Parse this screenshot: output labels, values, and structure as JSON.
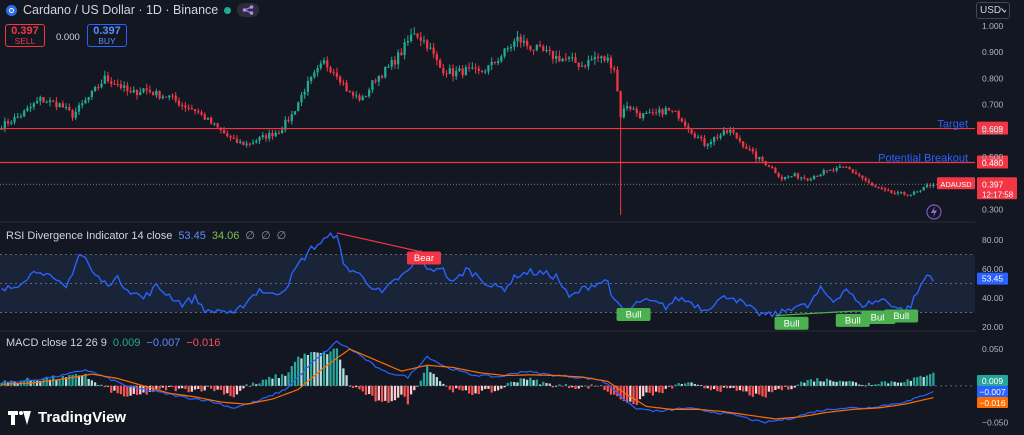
{
  "header": {
    "title": "Cardano / US Dollar · 1D · Binance",
    "logo_icon": "cardano-coin-icon",
    "status_color": "#22ab94",
    "currency_selector": "USD"
  },
  "trade": {
    "sell_price": "0.397",
    "sell_label": "SELL",
    "spread": "0.000",
    "buy_price": "0.397",
    "buy_label": "BUY"
  },
  "rsi_legend": {
    "name": "RSI Divergence Indicator 14 close",
    "value1": "53.45",
    "value2": "34.06",
    "value3": "∅",
    "value4": "∅",
    "value5": "∅"
  },
  "macd_legend": {
    "name": "MACD close 12 26 9",
    "hist": "0.009",
    "macd": "−0.007",
    "signal": "−0.016"
  },
  "branding": {
    "name": "TradingView"
  },
  "chart_data": [
    {
      "type": "candlestick",
      "symbol": "ADAUSD",
      "ylim": [
        0.28,
        1.03
      ],
      "y_ticks": [
        1.0,
        0.9,
        0.8,
        0.7,
        0.6,
        0.5,
        0.4,
        0.3
      ],
      "y_tick_labels": [
        "1.000",
        "0.900",
        "0.800",
        "0.700",
        "0.600",
        "0.500",
        "0.400",
        "0.300"
      ],
      "last_price": "0.397",
      "countdown": "12:17:58",
      "close_path": [
        [
          0,
          0.62
        ],
        [
          6,
          0.66
        ],
        [
          12,
          0.72
        ],
        [
          18,
          0.7
        ],
        [
          22,
          0.66
        ],
        [
          28,
          0.74
        ],
        [
          32,
          0.8
        ],
        [
          36,
          0.78
        ],
        [
          40,
          0.74
        ],
        [
          44,
          0.76
        ],
        [
          48,
          0.74
        ],
        [
          52,
          0.73
        ],
        [
          56,
          0.7
        ],
        [
          60,
          0.68
        ],
        [
          64,
          0.64
        ],
        [
          68,
          0.6
        ],
        [
          72,
          0.56
        ],
        [
          76,
          0.55
        ],
        [
          80,
          0.57
        ],
        [
          86,
          0.6
        ],
        [
          90,
          0.66
        ],
        [
          94,
          0.76
        ],
        [
          100,
          0.86
        ],
        [
          104,
          0.82
        ],
        [
          108,
          0.74
        ],
        [
          112,
          0.72
        ],
        [
          116,
          0.8
        ],
        [
          120,
          0.84
        ],
        [
          124,
          0.9
        ],
        [
          128,
          0.98
        ],
        [
          132,
          0.93
        ],
        [
          136,
          0.84
        ],
        [
          140,
          0.82
        ],
        [
          144,
          0.83
        ],
        [
          148,
          0.82
        ],
        [
          152,
          0.85
        ],
        [
          156,
          0.9
        ],
        [
          160,
          0.95
        ],
        [
          164,
          0.92
        ],
        [
          168,
          0.9
        ],
        [
          172,
          0.88
        ],
        [
          176,
          0.87
        ],
        [
          180,
          0.85
        ],
        [
          184,
          0.88
        ],
        [
          188,
          0.87
        ],
        [
          190,
          0.84
        ],
        [
          192,
          0.66
        ],
        [
          194,
          0.7
        ],
        [
          198,
          0.66
        ],
        [
          202,
          0.66
        ],
        [
          206,
          0.68
        ],
        [
          210,
          0.66
        ],
        [
          214,
          0.6
        ],
        [
          218,
          0.55
        ],
        [
          222,
          0.58
        ],
        [
          226,
          0.6
        ],
        [
          230,
          0.55
        ],
        [
          234,
          0.5
        ],
        [
          238,
          0.47
        ],
        [
          242,
          0.42
        ],
        [
          246,
          0.43
        ],
        [
          250,
          0.42
        ],
        [
          254,
          0.44
        ],
        [
          258,
          0.45
        ],
        [
          262,
          0.46
        ],
        [
          266,
          0.43
        ],
        [
          270,
          0.39
        ],
        [
          274,
          0.37
        ],
        [
          278,
          0.36
        ],
        [
          282,
          0.36
        ],
        [
          285,
          0.37
        ],
        [
          287,
          0.39
        ],
        [
          289,
          0.4
        ]
      ],
      "wick_spike": {
        "x": 192,
        "low": 0.28
      },
      "horizontal_lines": [
        {
          "label": "Target",
          "value": 0.609,
          "value_label": "0.609"
        },
        {
          "label": "Potential Breakout",
          "value": 0.48,
          "value_label": "0.480"
        }
      ],
      "colors": {
        "up": "#22ab94",
        "down": "#f23645",
        "line": "#f23645",
        "label": "#2962ff"
      }
    },
    {
      "type": "line",
      "title": "RSI Divergence Indicator 14 close",
      "ylim": [
        18,
        87
      ],
      "y_ticks": [
        80,
        60,
        40,
        20
      ],
      "y_tick_labels": [
        "80.00",
        "60.00",
        "40.00",
        "20.00"
      ],
      "band": [
        30,
        70
      ],
      "midline": 50,
      "last_value": "53.45",
      "series": [
        {
          "values": [
            [
              0,
              45
            ],
            [
              4,
              48
            ],
            [
              8,
              55
            ],
            [
              12,
              60
            ],
            [
              16,
              52
            ],
            [
              20,
              47
            ],
            [
              24,
              70
            ],
            [
              26,
              68
            ],
            [
              28,
              58
            ],
            [
              32,
              50
            ],
            [
              36,
              53
            ],
            [
              40,
              45
            ],
            [
              44,
              40
            ],
            [
              48,
              48
            ],
            [
              52,
              42
            ],
            [
              56,
              36
            ],
            [
              60,
              40
            ],
            [
              64,
              30
            ],
            [
              68,
              32
            ],
            [
              72,
              28
            ],
            [
              76,
              38
            ],
            [
              80,
              46
            ],
            [
              84,
              42
            ],
            [
              88,
              47
            ],
            [
              92,
              63
            ],
            [
              96,
              74
            ],
            [
              100,
              80
            ],
            [
              104,
              85
            ],
            [
              106,
              62
            ],
            [
              110,
              58
            ],
            [
              114,
              50
            ],
            [
              118,
              43
            ],
            [
              122,
              52
            ],
            [
              126,
              58
            ],
            [
              128,
              64
            ],
            [
              130,
              72
            ],
            [
              132,
              58
            ],
            [
              136,
              62
            ],
            [
              140,
              50
            ],
            [
              144,
              60
            ],
            [
              148,
              55
            ],
            [
              152,
              48
            ],
            [
              156,
              47
            ],
            [
              160,
              56
            ],
            [
              164,
              58
            ],
            [
              168,
              57
            ],
            [
              172,
              55
            ],
            [
              174,
              48
            ],
            [
              176,
              40
            ],
            [
              180,
              46
            ],
            [
              184,
              50
            ],
            [
              188,
              52
            ],
            [
              190,
              37
            ],
            [
              194,
              30
            ],
            [
              198,
              38
            ],
            [
              202,
              37
            ],
            [
              206,
              34
            ],
            [
              210,
              40
            ],
            [
              214,
              37
            ],
            [
              218,
              32
            ],
            [
              222,
              38
            ],
            [
              226,
              42
            ],
            [
              230,
              36
            ],
            [
              234,
              30
            ],
            [
              238,
              28
            ],
            [
              242,
              30
            ],
            [
              246,
              35
            ],
            [
              250,
              34
            ],
            [
              254,
              46
            ],
            [
              258,
              38
            ],
            [
              262,
              47
            ],
            [
              266,
              35
            ],
            [
              270,
              37
            ],
            [
              274,
              39
            ],
            [
              278,
              33
            ],
            [
              280,
              31
            ],
            [
              282,
              35
            ],
            [
              285,
              48
            ],
            [
              287,
              56
            ],
            [
              289,
              54
            ]
          ]
        }
      ],
      "annotations": [
        {
          "label": "Bear",
          "x": 131,
          "y": 68,
          "color": "#f23645"
        },
        {
          "label": "Bull",
          "x": 196,
          "y": 29,
          "color": "#4caf50"
        },
        {
          "label": "Bull",
          "x": 245,
          "y": 23,
          "color": "#4caf50"
        },
        {
          "label": "Bull",
          "x": 264,
          "y": 25,
          "color": "#4caf50"
        },
        {
          "label": "Bull",
          "x": 272,
          "y": 27,
          "color": "#4caf50"
        },
        {
          "label": "Bull",
          "x": 279,
          "y": 28,
          "color": "#4caf50"
        }
      ],
      "divergence_lines": [
        {
          "from": [
            104,
            85
          ],
          "to": [
            130,
            72
          ],
          "color": "#f23645"
        },
        {
          "from": [
            240,
            28
          ],
          "to": [
            264,
            31
          ],
          "color": "#4caf50"
        },
        {
          "from": [
            264,
            31
          ],
          "to": [
            280,
            31
          ],
          "color": "#4caf50"
        }
      ]
    },
    {
      "type": "line",
      "title": "MACD close 12 26 9",
      "ylim": [
        -0.06,
        0.065
      ],
      "y_ticks": [
        0.05,
        0.0,
        -0.05
      ],
      "y_tick_labels": [
        "0.050",
        "0.000",
        "−0.050"
      ],
      "last_values": {
        "hist": "0.009",
        "macd": "−0.007",
        "signal": "−0.016"
      },
      "series": [
        {
          "name": "MACD",
          "color": "#2962ff",
          "values": [
            [
              0,
              0.004
            ],
            [
              10,
              0.008
            ],
            [
              20,
              0.015
            ],
            [
              26,
              0.022
            ],
            [
              32,
              0.012
            ],
            [
              40,
              -0.002
            ],
            [
              48,
              -0.008
            ],
            [
              56,
              -0.015
            ],
            [
              64,
              -0.02
            ],
            [
              72,
              -0.03
            ],
            [
              80,
              -0.02
            ],
            [
              88,
              -0.005
            ],
            [
              96,
              0.03
            ],
            [
              104,
              0.06
            ],
            [
              110,
              0.045
            ],
            [
              118,
              0.02
            ],
            [
              126,
              0.012
            ],
            [
              132,
              0.04
            ],
            [
              138,
              0.025
            ],
            [
              146,
              0.015
            ],
            [
              154,
              0.012
            ],
            [
              162,
              0.02
            ],
            [
              170,
              0.015
            ],
            [
              178,
              0.012
            ],
            [
              186,
              0.008
            ],
            [
              190,
              -0.005
            ],
            [
              196,
              -0.03
            ],
            [
              204,
              -0.035
            ],
            [
              212,
              -0.03
            ],
            [
              220,
              -0.035
            ],
            [
              228,
              -0.04
            ],
            [
              236,
              -0.05
            ],
            [
              244,
              -0.045
            ],
            [
              252,
              -0.035
            ],
            [
              260,
              -0.03
            ],
            [
              268,
              -0.03
            ],
            [
              276,
              -0.025
            ],
            [
              282,
              -0.02
            ],
            [
              289,
              -0.007
            ]
          ]
        },
        {
          "name": "Signal",
          "color": "#ff6d00",
          "values": [
            [
              0,
              0.002
            ],
            [
              10,
              0.004
            ],
            [
              20,
              0.01
            ],
            [
              28,
              0.016
            ],
            [
              36,
              0.01
            ],
            [
              44,
              0.0
            ],
            [
              52,
              -0.01
            ],
            [
              60,
              -0.015
            ],
            [
              68,
              -0.022
            ],
            [
              76,
              -0.025
            ],
            [
              84,
              -0.018
            ],
            [
              92,
              -0.005
            ],
            [
              100,
              0.025
            ],
            [
              108,
              0.05
            ],
            [
              116,
              0.035
            ],
            [
              124,
              0.02
            ],
            [
              132,
              0.028
            ],
            [
              140,
              0.025
            ],
            [
              148,
              0.018
            ],
            [
              156,
              0.014
            ],
            [
              164,
              0.015
            ],
            [
              172,
              0.014
            ],
            [
              180,
              0.012
            ],
            [
              188,
              0.006
            ],
            [
              194,
              -0.012
            ],
            [
              200,
              -0.028
            ],
            [
              208,
              -0.032
            ],
            [
              216,
              -0.032
            ],
            [
              224,
              -0.035
            ],
            [
              232,
              -0.04
            ],
            [
              240,
              -0.045
            ],
            [
              248,
              -0.042
            ],
            [
              256,
              -0.036
            ],
            [
              264,
              -0.032
            ],
            [
              272,
              -0.03
            ],
            [
              280,
              -0.025
            ],
            [
              289,
              -0.016
            ]
          ]
        }
      ],
      "histogram_colors": {
        "pos_strong": "#26a69a",
        "pos_weak": "#b2dfdb",
        "neg_strong": "#ff5252",
        "neg_weak": "#ffcdd2"
      }
    }
  ]
}
